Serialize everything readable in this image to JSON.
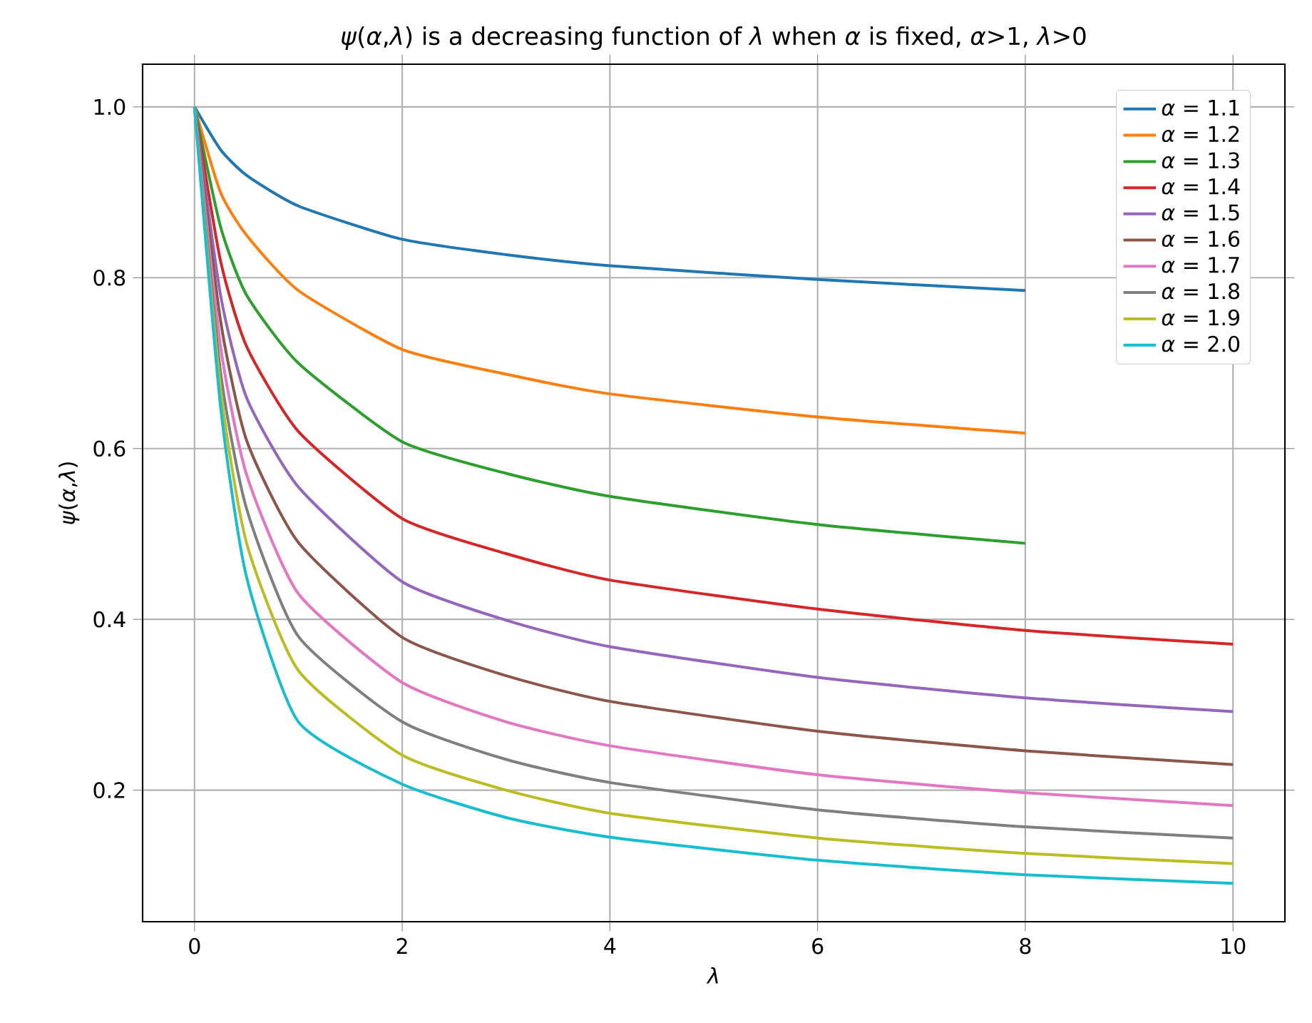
{
  "chart_data": {
    "type": "line",
    "title": "*ψ*(*α*,*λ*) is a decreasing function of *λ* when *α* is fixed, *α*>1, *λ*>0",
    "xlabel": "*λ*",
    "ylabel": "*ψ*(*α*,*λ*)",
    "x": [
      0,
      0.25,
      0.5,
      1,
      2,
      3,
      4,
      6,
      8,
      10
    ],
    "series": [
      {
        "name": "*α* = 1.1",
        "color": "#1f77b4",
        "values": [
          1.0,
          0.95,
          0.92,
          0.884,
          0.845,
          0.827,
          0.814,
          0.798,
          0.785,
          null
        ]
      },
      {
        "name": "*α* = 1.2",
        "color": "#ff7f0e",
        "values": [
          1.0,
          0.9,
          0.85,
          0.785,
          0.716,
          0.687,
          0.664,
          0.637,
          0.618,
          null
        ]
      },
      {
        "name": "*α* = 1.3",
        "color": "#2ca02c",
        "values": [
          1.0,
          0.86,
          0.78,
          0.7,
          0.608,
          0.571,
          0.544,
          0.511,
          0.489,
          null
        ]
      },
      {
        "name": "*α* = 1.4",
        "color": "#d62728",
        "values": [
          1.0,
          0.82,
          0.72,
          0.62,
          0.518,
          0.477,
          0.446,
          0.412,
          0.387,
          0.371
        ]
      },
      {
        "name": "*α* = 1.5",
        "color": "#9467bd",
        "values": [
          1.0,
          0.78,
          0.66,
          0.555,
          0.444,
          0.399,
          0.368,
          0.332,
          0.308,
          0.292
        ]
      },
      {
        "name": "*α* = 1.6",
        "color": "#8c564b",
        "values": [
          1.0,
          0.75,
          0.61,
          0.49,
          0.379,
          0.334,
          0.304,
          0.269,
          0.246,
          0.23
        ]
      },
      {
        "name": "*α* = 1.7",
        "color": "#e377c2",
        "values": [
          1.0,
          0.72,
          0.57,
          0.43,
          0.326,
          0.28,
          0.252,
          0.218,
          0.197,
          0.182
        ]
      },
      {
        "name": "*α* = 1.8",
        "color": "#7f7f7f",
        "values": [
          1.0,
          0.69,
          0.53,
          0.38,
          0.28,
          0.236,
          0.209,
          0.177,
          0.157,
          0.144
        ]
      },
      {
        "name": "*α* = 1.9",
        "color": "#bcbd22",
        "values": [
          1.0,
          0.67,
          0.49,
          0.34,
          0.241,
          0.2,
          0.173,
          0.144,
          0.126,
          0.114
        ]
      },
      {
        "name": "*α* = 2.0",
        "color": "#17becf",
        "values": [
          1.0,
          0.65,
          0.45,
          0.28,
          0.207,
          0.168,
          0.145,
          0.118,
          0.101,
          0.091
        ]
      }
    ],
    "xlim": [
      -0.5,
      10.5
    ],
    "ylim": [
      0.046,
      1.05
    ],
    "xticks": [
      0,
      2,
      4,
      6,
      8,
      10
    ],
    "yticks": [
      0.2,
      0.4,
      0.6,
      0.8,
      {
        "value": 1.0,
        "label": "1.0"
      }
    ],
    "grid": true,
    "legend": "top right",
    "line_style": "solid",
    "marker": "none"
  }
}
